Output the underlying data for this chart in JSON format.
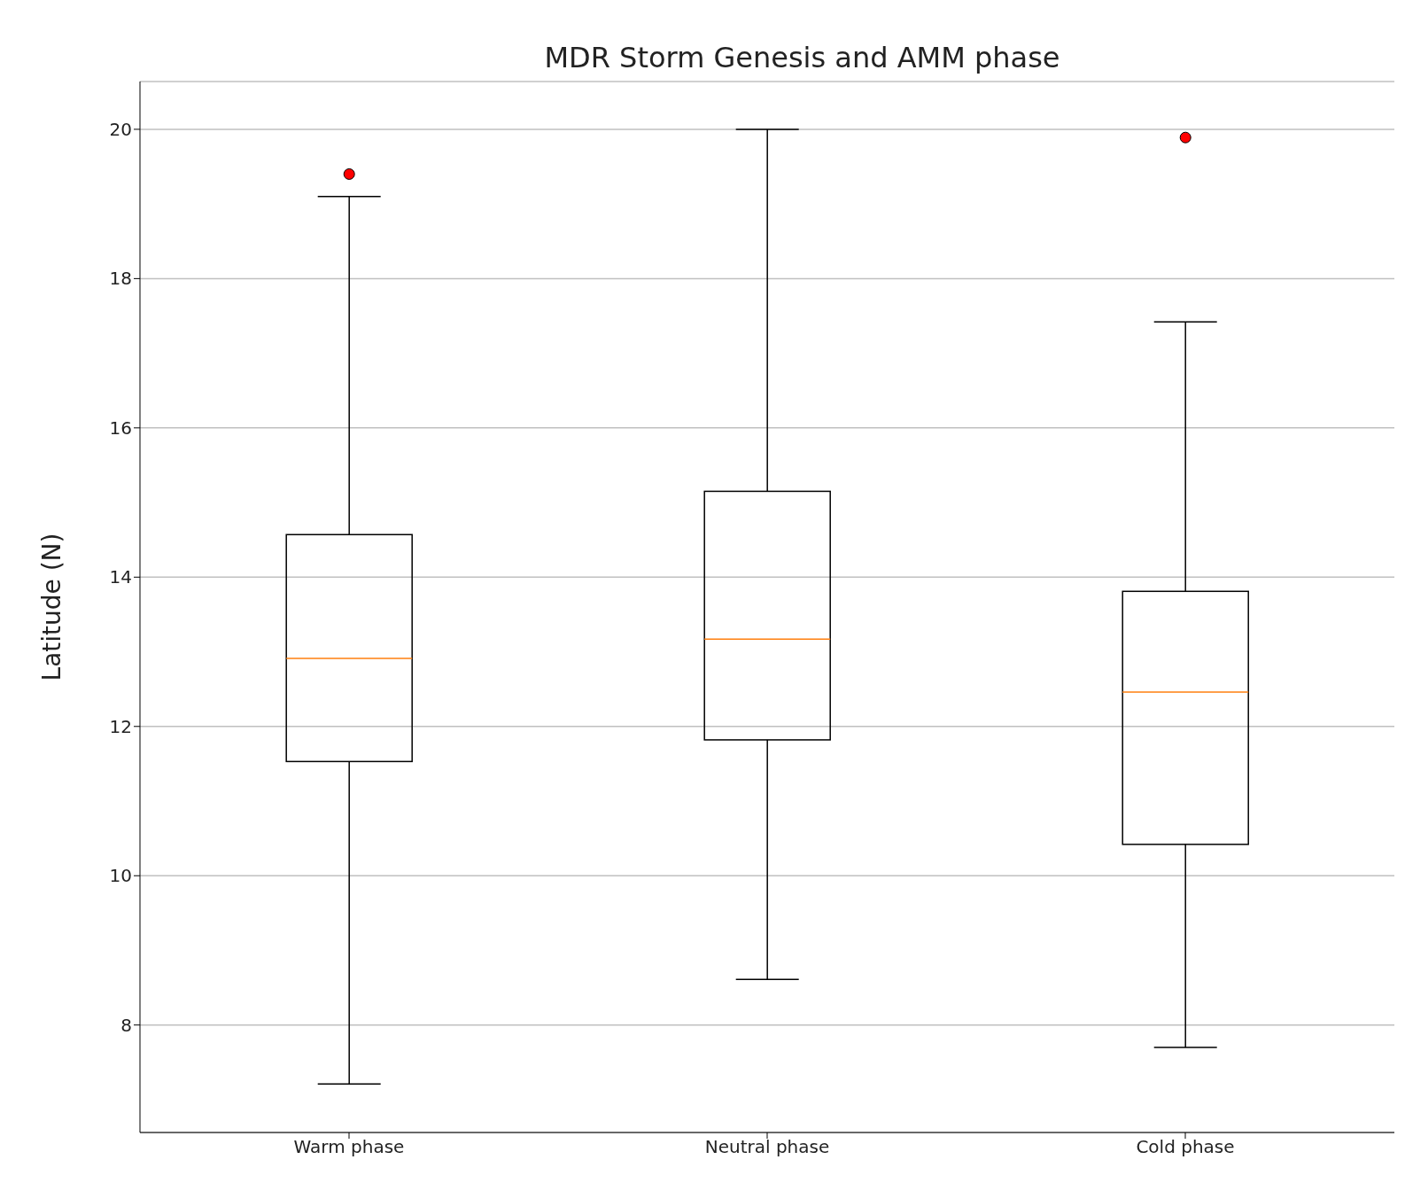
{
  "chart_data": {
    "type": "box",
    "title": "MDR Storm Genesis and AMM phase",
    "ylabel": "Latitude (N)",
    "categories": [
      "Warm phase",
      "Neutral phase",
      "Cold phase"
    ],
    "boxes": [
      {
        "low": 7.21,
        "q1": 11.53,
        "median": 12.91,
        "q3": 14.57,
        "high": 19.1,
        "outliers": [
          19.4
        ]
      },
      {
        "low": 8.61,
        "q1": 11.82,
        "median": 13.17,
        "q3": 15.15,
        "high": 20.0
      },
      {
        "low": 7.7,
        "q1": 10.42,
        "median": 12.46,
        "q3": 13.81,
        "high": 17.42,
        "outliers": [
          19.89
        ]
      }
    ],
    "color": "#000000",
    "ylim": [
      6.56,
      20.64
    ],
    "yticks": [
      8,
      10,
      12,
      14,
      16,
      18,
      20
    ],
    "grid": "y"
  }
}
